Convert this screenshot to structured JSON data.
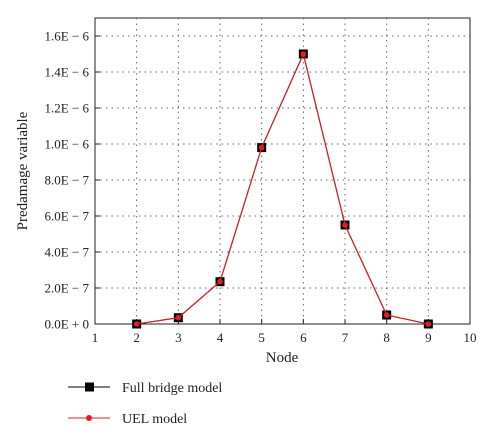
{
  "chart_data": {
    "type": "line",
    "xlabel": "Node",
    "ylabel": "Predamage variable",
    "xlim": [
      1,
      10
    ],
    "ylim": [
      0,
      1.7e-06
    ],
    "xticks": [
      1,
      2,
      3,
      4,
      5,
      6,
      7,
      8,
      9,
      10
    ],
    "xtick_labels": [
      "1",
      "2",
      "3",
      "4",
      "5",
      "6",
      "7",
      "8",
      "9",
      "10"
    ],
    "yticks": [
      0,
      2e-07,
      4e-07,
      6e-07,
      8e-07,
      1e-06,
      1.2e-06,
      1.4e-06,
      1.6e-06
    ],
    "ytick_labels": [
      "0.0E + 0",
      "2.0E − 7",
      "4.0E − 7",
      "6.0E − 7",
      "8.0E − 7",
      "1.0E − 6",
      "1.2E − 6",
      "1.4E − 6",
      "1.6E − 6"
    ],
    "grid": true,
    "legend_position": "bottom-left, below plot",
    "x": [
      2,
      3,
      4,
      5,
      6,
      7,
      8,
      9
    ],
    "series": [
      {
        "name": "Full bridge model",
        "marker": "square",
        "color": "#000000",
        "line_color": "#000000",
        "values": [
          0,
          3.5e-08,
          2.35e-07,
          9.8e-07,
          1.5e-06,
          5.5e-07,
          5e-08,
          0
        ]
      },
      {
        "name": "UEL model",
        "marker": "circle",
        "color": "#e02020",
        "line_color": "#e02020",
        "values": [
          0,
          3.5e-08,
          2.35e-07,
          9.8e-07,
          1.5e-06,
          5.5e-07,
          5e-08,
          0
        ]
      }
    ]
  }
}
